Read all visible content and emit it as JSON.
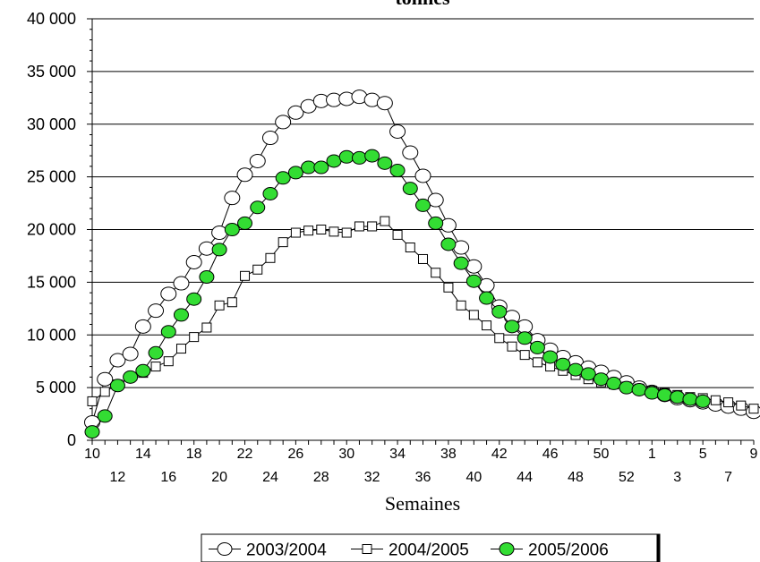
{
  "chart_data": {
    "type": "line",
    "title": "tonnes",
    "xlabel": "Semaines",
    "ylabel": "",
    "ylim": [
      0,
      40000
    ],
    "y_ticks": [
      "0",
      "5 000",
      "10 000",
      "15 000",
      "20 000",
      "25 000",
      "30 000",
      "35 000",
      "40 000"
    ],
    "x_ticks_row1": [
      "10",
      "14",
      "18",
      "22",
      "26",
      "30",
      "34",
      "38",
      "42",
      "46",
      "50",
      "1",
      "5",
      "9"
    ],
    "x_ticks_row2": [
      "12",
      "16",
      "20",
      "24",
      "28",
      "32",
      "36",
      "40",
      "44",
      "48",
      "52",
      "3",
      "7"
    ],
    "grid": true,
    "legend_position": "bottom",
    "categories": [
      "10",
      "11",
      "12",
      "13",
      "14",
      "15",
      "16",
      "17",
      "18",
      "19",
      "20",
      "21",
      "22",
      "23",
      "24",
      "25",
      "26",
      "27",
      "28",
      "29",
      "30",
      "31",
      "32",
      "33",
      "34",
      "35",
      "36",
      "37",
      "38",
      "39",
      "40",
      "41",
      "42",
      "43",
      "44",
      "45",
      "46",
      "47",
      "48",
      "49",
      "50",
      "51",
      "52",
      "1",
      "2",
      "3",
      "4",
      "5",
      "6",
      "7",
      "8",
      "9",
      "10"
    ],
    "series": [
      {
        "name": "2003/2004",
        "marker": "circle",
        "fill": "#ffffff",
        "values": [
          1700,
          5800,
          7600,
          8200,
          10800,
          12300,
          13900,
          14900,
          16900,
          18200,
          19700,
          23000,
          25200,
          26500,
          28700,
          30200,
          31100,
          31700,
          32200,
          32300,
          32400,
          32600,
          32300,
          32000,
          29300,
          27300,
          25100,
          22800,
          20400,
          18300,
          16500,
          14700,
          12700,
          11700,
          10800,
          9500,
          8600,
          7900,
          7400,
          6900,
          6500,
          6000,
          5500,
          5000,
          4600,
          4300,
          4000,
          3800,
          3600,
          3400,
          3200,
          3000,
          2700
        ]
      },
      {
        "name": "2004/2005",
        "marker": "square",
        "fill": "#ffffff",
        "values": [
          3700,
          4600,
          5300,
          6000,
          6400,
          7000,
          7500,
          8700,
          9800,
          10700,
          12800,
          13100,
          15600,
          16200,
          17300,
          18800,
          19700,
          19900,
          20000,
          19800,
          19700,
          20300,
          20300,
          20800,
          19500,
          18300,
          17200,
          15900,
          14500,
          12800,
          11900,
          10900,
          9700,
          8900,
          8100,
          7400,
          7000,
          6600,
          6200,
          5800,
          5500,
          5300,
          5100,
          4900,
          4700,
          4500,
          4300,
          4100,
          4000,
          3800,
          3600,
          3300,
          3000
        ]
      },
      {
        "name": "2005/2006",
        "marker": "circle",
        "fill": "#33dd33",
        "values": [
          800,
          2300,
          5200,
          6000,
          6600,
          8300,
          10300,
          11900,
          13400,
          15500,
          18100,
          20000,
          20600,
          22100,
          23400,
          24900,
          25400,
          25900,
          25900,
          26500,
          26900,
          26800,
          27000,
          26300,
          25600,
          23900,
          22300,
          20600,
          18600,
          16800,
          15100,
          13500,
          12200,
          10800,
          9700,
          8800,
          7900,
          7200,
          6700,
          6300,
          5800,
          5400,
          5000,
          4800,
          4500,
          4300,
          4100,
          3900,
          3700,
          0,
          0,
          0,
          0
        ],
        "points": 49
      }
    ]
  }
}
